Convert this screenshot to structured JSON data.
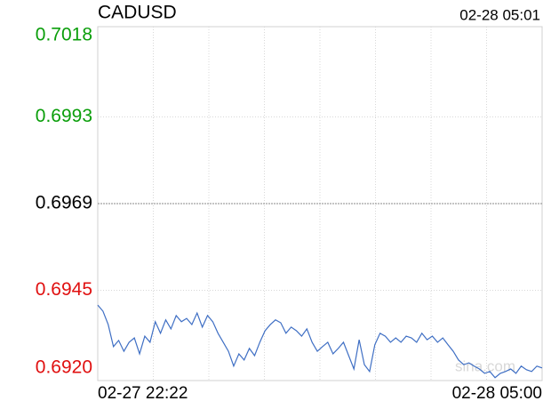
{
  "chart_data": {
    "type": "line",
    "title": "CADUSD",
    "timestamp": "02-28 05:01",
    "watermark": "sina.com",
    "categories": [
      "02-27 22:22",
      null,
      null,
      null,
      null,
      null,
      null,
      null,
      null,
      null,
      null,
      null,
      null,
      null,
      null,
      null,
      null,
      null,
      null,
      null,
      null,
      null,
      null,
      null,
      null,
      null,
      null,
      null,
      null,
      null,
      null,
      null,
      null,
      null,
      null,
      null,
      null,
      null,
      null,
      null,
      null,
      null,
      null,
      null,
      null,
      null,
      null,
      null,
      null,
      null,
      null,
      null,
      null,
      null,
      null,
      null,
      null,
      null,
      null,
      null,
      null,
      null,
      null,
      null,
      null,
      null,
      null,
      null,
      null,
      null,
      null,
      null,
      null,
      null,
      null,
      null,
      null,
      null,
      null,
      null,
      null,
      null,
      null,
      null,
      null,
      "02-28 05:00"
    ],
    "series": [
      {
        "name": "CADUSD",
        "color": "#3f6fc4",
        "values": [
          0.69409,
          0.69392,
          0.69355,
          0.69294,
          0.69311,
          0.69281,
          0.69306,
          0.69318,
          0.69274,
          0.69323,
          0.69306,
          0.69363,
          0.69331,
          0.69368,
          0.69343,
          0.6938,
          0.69363,
          0.69372,
          0.69355,
          0.69387,
          0.69348,
          0.6938,
          0.69363,
          0.69331,
          0.69306,
          0.69281,
          0.6924,
          0.69274,
          0.69257,
          0.69289,
          0.69269,
          0.69306,
          0.69338,
          0.69355,
          0.69368,
          0.6936,
          0.69331,
          0.69348,
          0.69338,
          0.69323,
          0.69343,
          0.69306,
          0.69281,
          0.69294,
          0.69306,
          0.69274,
          0.69289,
          0.69306,
          0.69269,
          0.69232,
          0.69313,
          0.69244,
          0.69225,
          0.69299,
          0.69331,
          0.69323,
          0.69306,
          0.69318,
          0.69306,
          0.69323,
          0.69318,
          0.69306,
          0.69331,
          0.69313,
          0.69323,
          0.69306,
          0.69318,
          0.69299,
          0.69281,
          0.69257,
          0.69244,
          0.69249,
          0.6924,
          0.69232,
          0.6922,
          0.69225,
          0.69208,
          0.6922,
          0.69225,
          0.69232,
          0.6922,
          0.6924,
          0.6923,
          0.69225,
          0.6924,
          0.69235
        ]
      }
    ],
    "ylim": [
      0.692,
      0.7018
    ],
    "yticks": [
      0.7018,
      0.6993,
      0.6969,
      0.6945,
      {
        "value": 0.692,
        "label": "0.6920"
      }
    ],
    "prev_close": 0.6969,
    "up_color": "#0a9e0a",
    "down_color": "#e01010",
    "flat_color": "#000000",
    "grid": true
  }
}
